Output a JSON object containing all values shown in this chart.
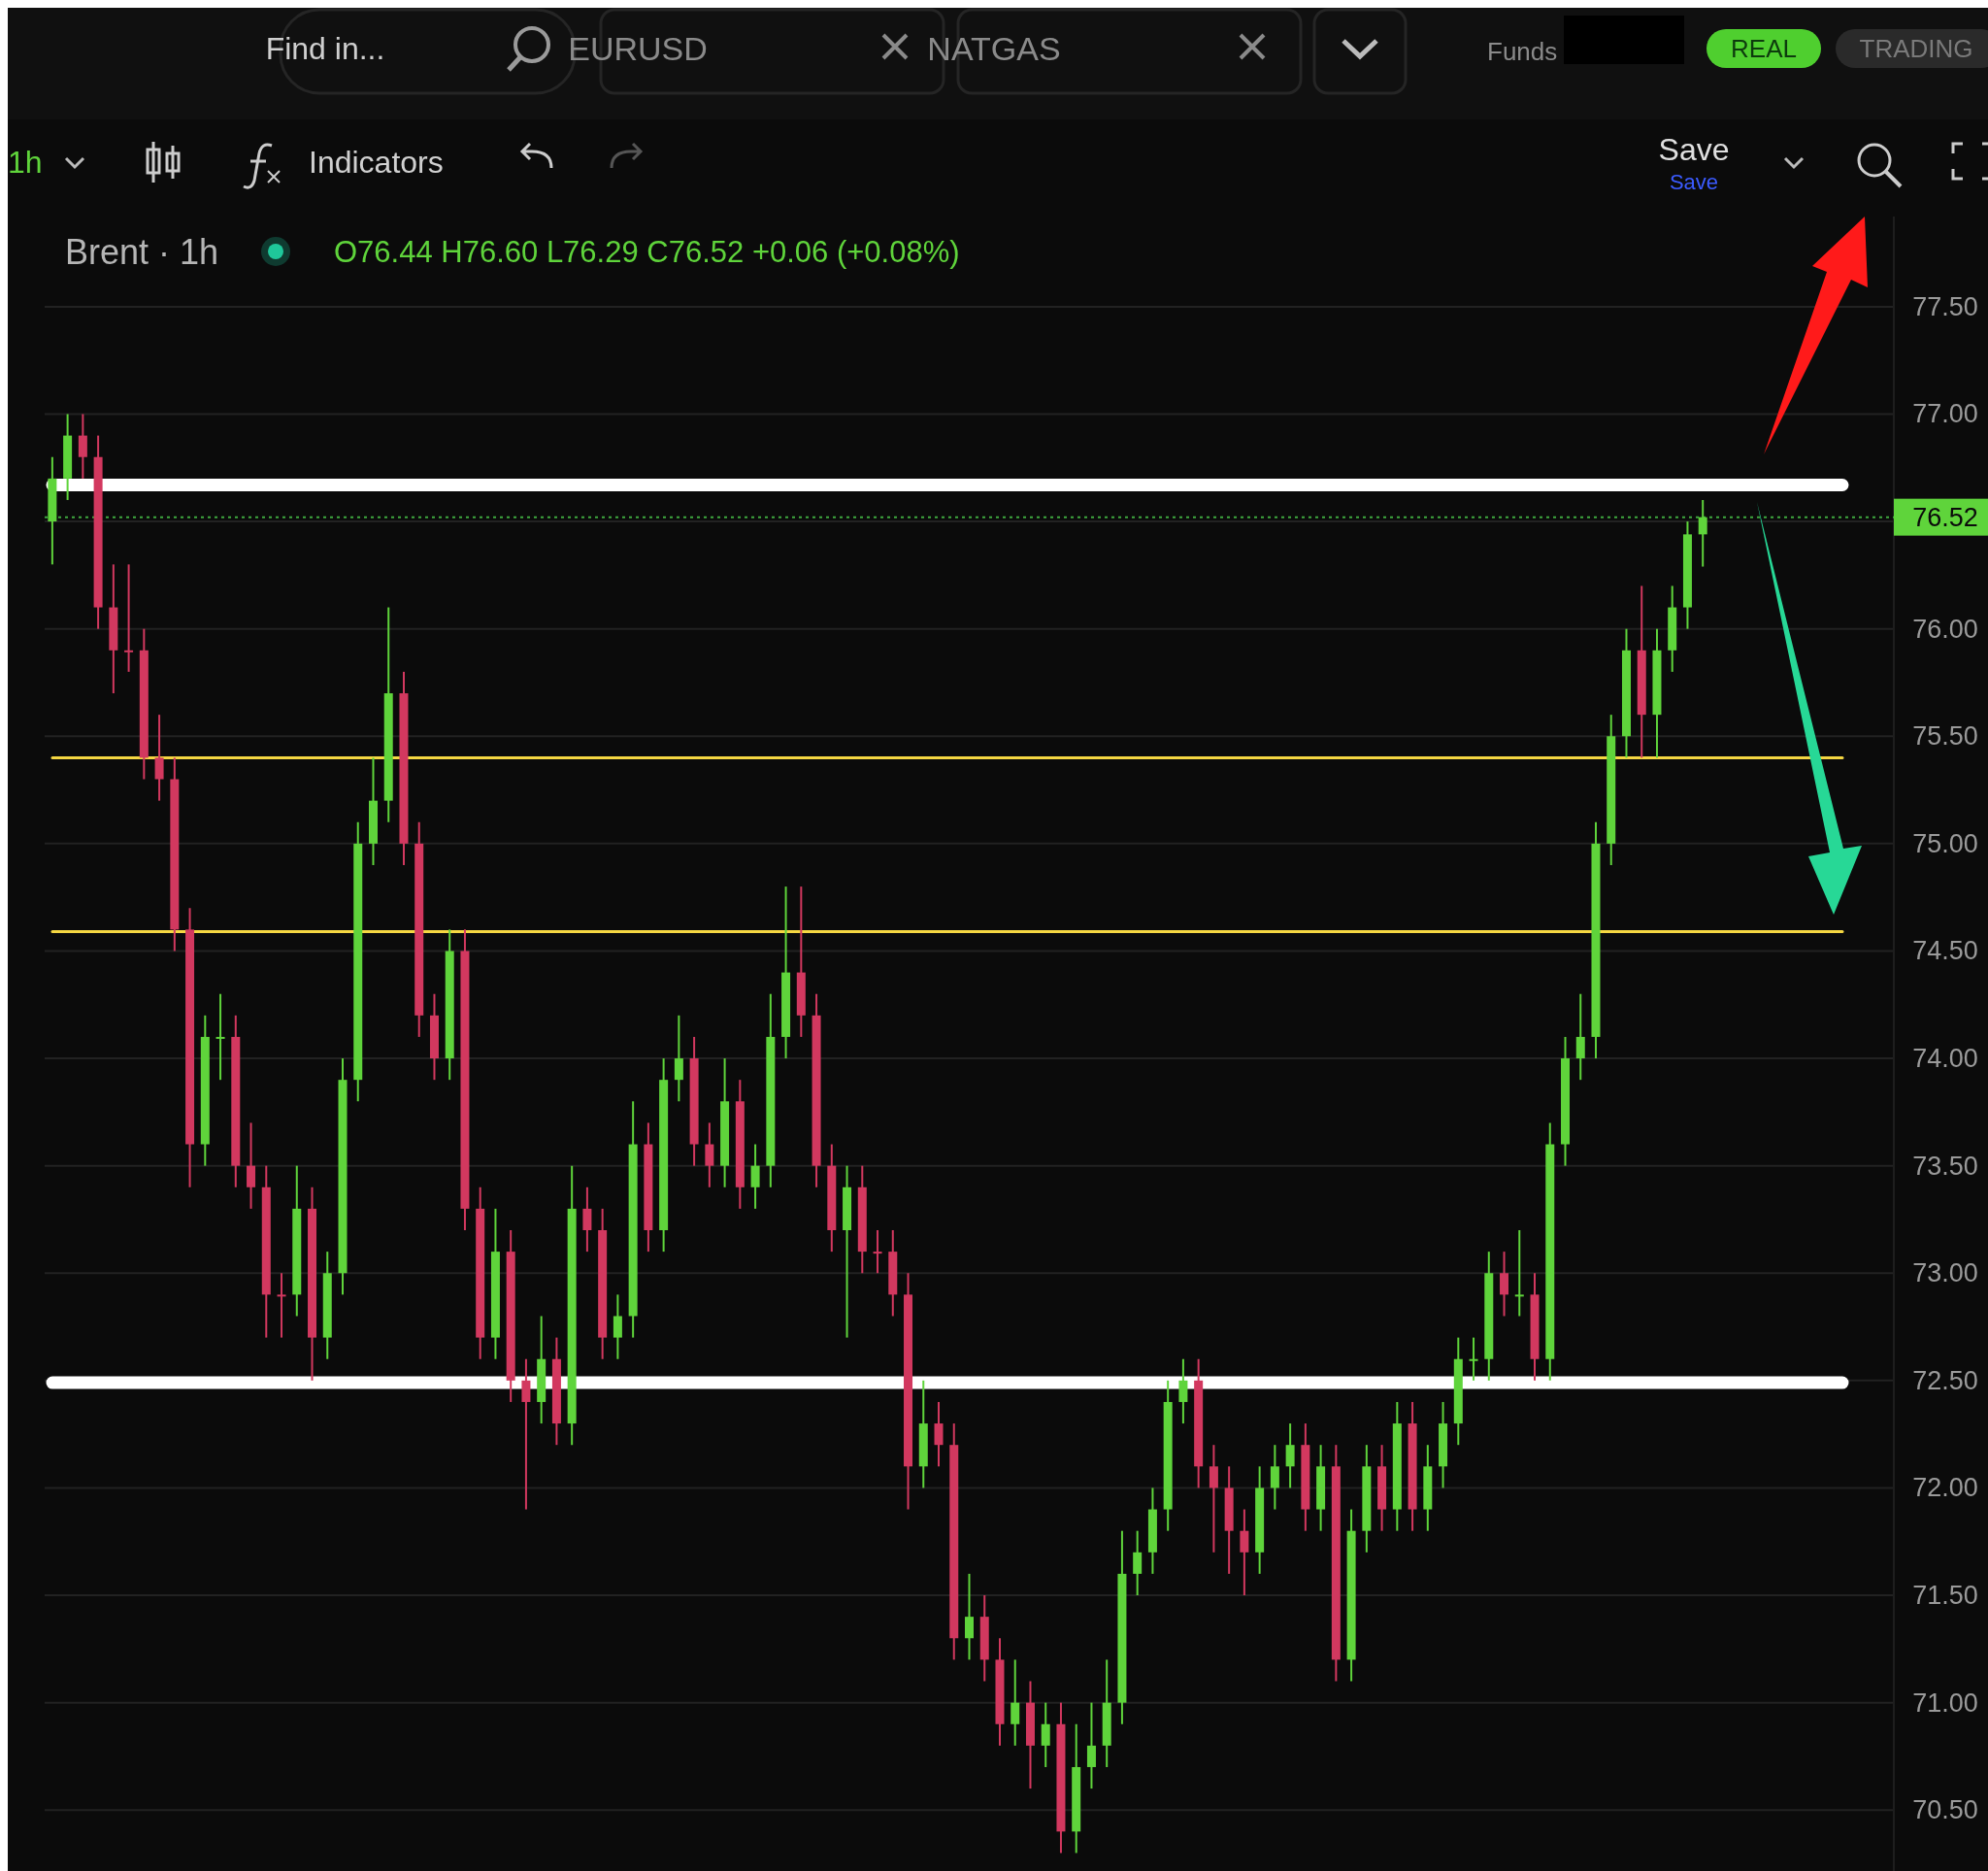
{
  "chart_data": {
    "type": "candlestick",
    "title": "Brent · 1h",
    "subtitle": "O76.44 H76.60 L76.29 C76.52 +0.06 (+0.08%)",
    "annotations": [
      "Find in...",
      "EURUSD",
      "NATGAS",
      "Funds",
      "REAL",
      "TRADING",
      "1h",
      "Indicators",
      "Save",
      "Save"
    ],
    "categories": [
      null,
      null,
      null,
      null,
      null,
      null,
      null,
      null,
      null,
      null,
      null,
      null,
      null,
      null,
      null,
      null,
      null,
      null,
      null,
      null,
      null,
      null,
      null,
      null,
      null,
      null,
      null,
      null,
      null,
      null,
      null,
      null,
      null,
      null,
      null,
      null,
      null,
      null,
      null,
      null,
      null,
      null,
      null,
      null,
      null,
      null,
      null,
      null,
      null,
      null,
      null,
      null,
      null,
      null,
      null,
      null,
      null,
      null,
      null,
      null,
      null,
      null,
      null,
      null,
      null,
      null,
      null,
      null,
      null,
      null,
      null,
      null,
      null,
      null,
      null,
      null,
      null,
      null,
      null,
      null,
      null,
      null,
      null,
      null,
      null,
      null,
      null,
      null,
      null,
      null,
      null,
      null,
      null,
      null,
      null,
      null,
      null,
      null,
      null,
      null,
      null,
      null,
      null,
      null,
      null,
      null,
      null,
      null,
      null,
      null,
      null,
      null,
      null,
      null,
      null,
      null,
      null,
      null,
      null,
      null,
      null
    ],
    "ohlc": [
      [
        76.5,
        76.8,
        76.3,
        76.7
      ],
      [
        76.7,
        77.0,
        76.6,
        76.9
      ],
      [
        76.9,
        77.0,
        76.7,
        76.8
      ],
      [
        76.8,
        76.9,
        76.0,
        76.1
      ],
      [
        76.1,
        76.3,
        75.7,
        75.9
      ],
      [
        75.9,
        76.3,
        75.8,
        75.9
      ],
      [
        75.9,
        76.0,
        75.3,
        75.4
      ],
      [
        75.4,
        75.6,
        75.2,
        75.3
      ],
      [
        75.3,
        75.4,
        74.5,
        74.6
      ],
      [
        74.6,
        74.7,
        73.4,
        73.6
      ],
      [
        73.6,
        74.2,
        73.5,
        74.1
      ],
      [
        74.1,
        74.3,
        73.9,
        74.1
      ],
      [
        74.1,
        74.2,
        73.4,
        73.5
      ],
      [
        73.5,
        73.7,
        73.3,
        73.4
      ],
      [
        73.4,
        73.5,
        72.7,
        72.9
      ],
      [
        72.9,
        73.0,
        72.7,
        72.9
      ],
      [
        72.9,
        73.5,
        72.8,
        73.3
      ],
      [
        73.3,
        73.4,
        72.5,
        72.7
      ],
      [
        72.7,
        73.1,
        72.6,
        73.0
      ],
      [
        73.0,
        74.0,
        72.9,
        73.9
      ],
      [
        73.9,
        75.1,
        73.8,
        75.0
      ],
      [
        75.0,
        75.4,
        74.9,
        75.2
      ],
      [
        75.2,
        76.1,
        75.1,
        75.7
      ],
      [
        75.7,
        75.8,
        74.9,
        75.0
      ],
      [
        75.0,
        75.1,
        74.1,
        74.2
      ],
      [
        74.2,
        74.3,
        73.9,
        74.0
      ],
      [
        74.0,
        74.6,
        73.9,
        74.5
      ],
      [
        74.5,
        74.6,
        73.2,
        73.3
      ],
      [
        73.3,
        73.4,
        72.6,
        72.7
      ],
      [
        72.7,
        73.3,
        72.6,
        73.1
      ],
      [
        73.1,
        73.2,
        72.4,
        72.5
      ],
      [
        72.5,
        72.6,
        71.9,
        72.4
      ],
      [
        72.4,
        72.8,
        72.3,
        72.6
      ],
      [
        72.6,
        72.7,
        72.2,
        72.3
      ],
      [
        72.3,
        73.5,
        72.2,
        73.3
      ],
      [
        73.3,
        73.4,
        73.1,
        73.2
      ],
      [
        73.2,
        73.3,
        72.6,
        72.7
      ],
      [
        72.7,
        72.9,
        72.6,
        72.8
      ],
      [
        72.8,
        73.8,
        72.7,
        73.6
      ],
      [
        73.6,
        73.7,
        73.1,
        73.2
      ],
      [
        73.2,
        74.0,
        73.1,
        73.9
      ],
      [
        73.9,
        74.2,
        73.8,
        74.0
      ],
      [
        74.0,
        74.1,
        73.5,
        73.6
      ],
      [
        73.6,
        73.7,
        73.4,
        73.5
      ],
      [
        73.5,
        74.0,
        73.4,
        73.8
      ],
      [
        73.8,
        73.9,
        73.3,
        73.4
      ],
      [
        73.4,
        73.6,
        73.3,
        73.5
      ],
      [
        73.5,
        74.3,
        73.4,
        74.1
      ],
      [
        74.1,
        74.8,
        74.0,
        74.4
      ],
      [
        74.4,
        74.8,
        74.1,
        74.2
      ],
      [
        74.2,
        74.3,
        73.4,
        73.5
      ],
      [
        73.5,
        73.6,
        73.1,
        73.2
      ],
      [
        73.2,
        73.5,
        72.7,
        73.4
      ],
      [
        73.4,
        73.5,
        73.0,
        73.1
      ],
      [
        73.1,
        73.2,
        73.0,
        73.1
      ],
      [
        73.1,
        73.2,
        72.8,
        72.9
      ],
      [
        72.9,
        73.0,
        71.9,
        72.1
      ],
      [
        72.1,
        72.5,
        72.0,
        72.3
      ],
      [
        72.3,
        72.4,
        72.1,
        72.2
      ],
      [
        72.2,
        72.3,
        71.2,
        71.3
      ],
      [
        71.3,
        71.6,
        71.2,
        71.4
      ],
      [
        71.4,
        71.5,
        71.1,
        71.2
      ],
      [
        71.2,
        71.3,
        70.8,
        70.9
      ],
      [
        70.9,
        71.2,
        70.8,
        71.0
      ],
      [
        71.0,
        71.1,
        70.6,
        70.8
      ],
      [
        70.8,
        71.0,
        70.7,
        70.9
      ],
      [
        70.9,
        71.0,
        70.3,
        70.4
      ],
      [
        70.4,
        70.9,
        70.3,
        70.7
      ],
      [
        70.7,
        71.0,
        70.6,
        70.8
      ],
      [
        70.8,
        71.2,
        70.7,
        71.0
      ],
      [
        71.0,
        71.8,
        70.9,
        71.6
      ],
      [
        71.6,
        71.8,
        71.5,
        71.7
      ],
      [
        71.7,
        72.0,
        71.6,
        71.9
      ],
      [
        71.9,
        72.5,
        71.8,
        72.4
      ],
      [
        72.4,
        72.6,
        72.3,
        72.5
      ],
      [
        72.5,
        72.6,
        72.0,
        72.1
      ],
      [
        72.1,
        72.2,
        71.7,
        72.0
      ],
      [
        72.0,
        72.1,
        71.6,
        71.8
      ],
      [
        71.8,
        71.9,
        71.5,
        71.7
      ],
      [
        71.7,
        72.1,
        71.6,
        72.0
      ],
      [
        72.0,
        72.2,
        71.9,
        72.1
      ],
      [
        72.1,
        72.3,
        72.0,
        72.2
      ],
      [
        72.2,
        72.3,
        71.8,
        71.9
      ],
      [
        71.9,
        72.2,
        71.8,
        72.1
      ],
      [
        72.1,
        72.2,
        71.1,
        71.2
      ],
      [
        71.2,
        71.9,
        71.1,
        71.8
      ],
      [
        71.8,
        72.2,
        71.7,
        72.1
      ],
      [
        72.1,
        72.2,
        71.8,
        71.9
      ],
      [
        71.9,
        72.4,
        71.8,
        72.3
      ],
      [
        72.3,
        72.4,
        71.8,
        71.9
      ],
      [
        71.9,
        72.2,
        71.8,
        72.1
      ],
      [
        72.1,
        72.4,
        72.0,
        72.3
      ],
      [
        72.3,
        72.7,
        72.2,
        72.6
      ],
      [
        72.6,
        72.7,
        72.5,
        72.6
      ],
      [
        72.6,
        73.1,
        72.5,
        73.0
      ],
      [
        73.0,
        73.1,
        72.8,
        72.9
      ],
      [
        72.9,
        73.2,
        72.8,
        72.9
      ],
      [
        72.9,
        73.0,
        72.5,
        72.6
      ],
      [
        72.6,
        73.7,
        72.5,
        73.6
      ],
      [
        73.6,
        74.1,
        73.5,
        74.0
      ],
      [
        74.0,
        74.3,
        73.9,
        74.1
      ],
      [
        74.1,
        75.1,
        74.0,
        75.0
      ],
      [
        75.0,
        75.6,
        74.9,
        75.5
      ],
      [
        75.5,
        76.0,
        75.4,
        75.9
      ],
      [
        75.9,
        76.2,
        75.4,
        75.6
      ],
      [
        75.6,
        76.0,
        75.4,
        75.9
      ],
      [
        75.9,
        76.2,
        75.8,
        76.1
      ],
      [
        76.1,
        76.5,
        76.0,
        76.44
      ],
      [
        76.44,
        76.6,
        76.29,
        76.52
      ],
      null,
      null,
      null,
      null,
      null,
      null,
      null,
      null,
      null,
      null,
      null,
      null
    ],
    "colors": [
      "#5fd43b",
      "#5fd43b",
      "#d2385f",
      "#d2385f",
      "#d2385f",
      "#d2385f",
      "#d2385f",
      "#d2385f",
      "#d2385f",
      "#d2385f",
      "#5fd43b",
      "#5fd43b",
      "#d2385f",
      "#d2385f",
      "#d2385f",
      "#d2385f",
      "#5fd43b",
      "#d2385f",
      "#5fd43b",
      "#5fd43b",
      "#5fd43b",
      "#5fd43b",
      "#5fd43b",
      "#d2385f",
      "#d2385f",
      "#d2385f",
      "#5fd43b",
      "#d2385f",
      "#d2385f",
      "#5fd43b",
      "#d2385f",
      "#d2385f",
      "#5fd43b",
      "#d2385f",
      "#5fd43b",
      "#d2385f",
      "#d2385f",
      "#5fd43b",
      "#5fd43b",
      "#d2385f",
      "#5fd43b",
      "#5fd43b",
      "#d2385f",
      "#d2385f",
      "#5fd43b",
      "#d2385f",
      "#5fd43b",
      "#5fd43b",
      "#5fd43b",
      "#d2385f",
      "#d2385f",
      "#d2385f",
      "#5fd43b",
      "#d2385f",
      "#d2385f",
      "#d2385f",
      "#d2385f",
      "#5fd43b",
      "#d2385f",
      "#d2385f",
      "#5fd43b",
      "#d2385f",
      "#d2385f",
      "#5fd43b",
      "#d2385f",
      "#5fd43b",
      "#d2385f",
      "#5fd43b",
      "#5fd43b",
      "#5fd43b",
      "#5fd43b",
      "#5fd43b",
      "#5fd43b",
      "#5fd43b",
      "#5fd43b",
      "#d2385f",
      "#d2385f",
      "#d2385f",
      "#d2385f",
      "#5fd43b",
      "#5fd43b",
      "#5fd43b",
      "#d2385f",
      "#5fd43b",
      "#d2385f",
      "#5fd43b",
      "#5fd43b",
      "#d2385f",
      "#5fd43b",
      "#d2385f",
      "#5fd43b",
      "#5fd43b",
      "#5fd43b",
      "#5fd43b",
      "#5fd43b",
      "#d2385f",
      "#5fd43b",
      "#d2385f",
      "#5fd43b",
      "#5fd43b",
      "#5fd43b",
      "#5fd43b",
      "#5fd43b",
      "#5fd43b",
      "#d2385f",
      "#5fd43b",
      "#5fd43b",
      "#5fd43b",
      "#5fd43b",
      null,
      null,
      null,
      null,
      null,
      null,
      null,
      null,
      null,
      null,
      null,
      null
    ],
    "ylim": [
      70.18,
      77.92
    ],
    "yticks": [
      {
        "value": 77.5,
        "label": "77.50"
      },
      {
        "value": 77,
        "label": "77.00"
      },
      {
        "value": 76.5,
        "label": null
      },
      {
        "value": 76,
        "label": "76.00"
      },
      {
        "value": 75.5,
        "label": "75.50"
      },
      {
        "value": 75,
        "label": "75.00"
      },
      {
        "value": 74.5,
        "label": "74.50"
      },
      {
        "value": 74,
        "label": "74.00"
      },
      {
        "value": 73.5,
        "label": "73.50"
      },
      {
        "value": 73,
        "label": "73.00"
      },
      {
        "value": 72.5,
        "label": "72.50"
      },
      {
        "value": 72,
        "label": "72.00"
      },
      {
        "value": 71.5,
        "label": "71.50"
      },
      {
        "value": 71,
        "label": "71.00"
      },
      {
        "value": 70.5,
        "label": "70.50"
      }
    ],
    "grid": "y",
    "ref_lines": [
      {
        "axis": "y",
        "value": 76.67,
        "color": "#ffffff"
      },
      {
        "axis": "y",
        "value": 76.52,
        "label": "76.52",
        "color": "#3fa83f",
        "line_style": "dotted"
      },
      {
        "axis": "y",
        "value": 75.4,
        "color": "#f5d742"
      },
      {
        "axis": "y",
        "value": 74.59,
        "color": "#f5d742"
      },
      {
        "axis": "y",
        "value": 72.49,
        "color": "#ffffff"
      }
    ]
  }
}
